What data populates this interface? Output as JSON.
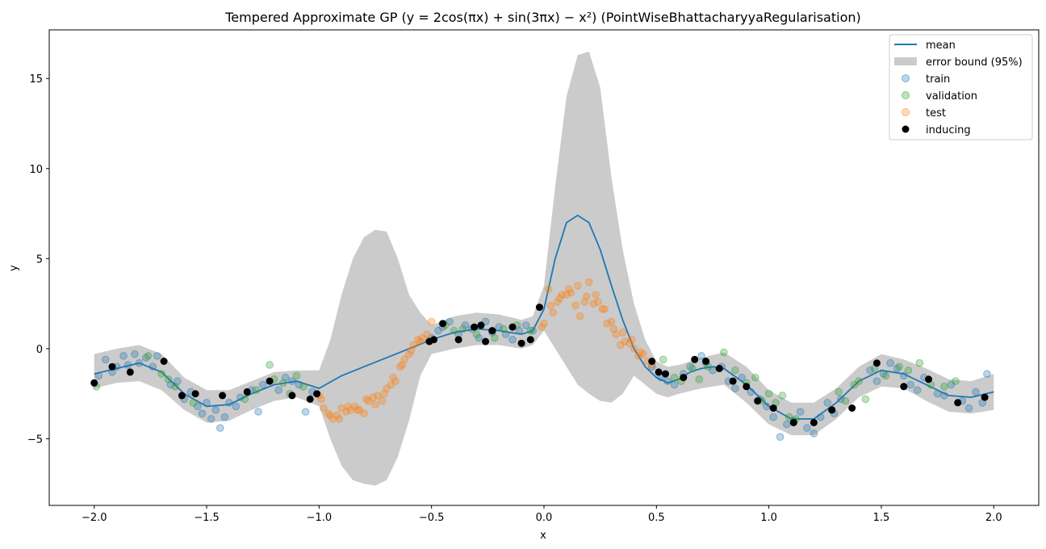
{
  "chart_data": {
    "type": "line",
    "title": "Tempered Approximate GP (y = 2cos(πx) + sin(3πx) − x²) (PointWiseBhattacharyyaRegularisation)",
    "xlabel": "x",
    "ylabel": "y",
    "xlim": [
      -2.2,
      2.2
    ],
    "ylim": [
      -8.7,
      17.7
    ],
    "xticks": [
      -2.0,
      -1.5,
      -1.0,
      -0.5,
      0.0,
      0.5,
      1.0,
      1.5,
      2.0
    ],
    "xtick_labels": [
      "−2.0",
      "−1.5",
      "−1.0",
      "−0.5",
      "0.0",
      "0.5",
      "1.0",
      "1.5",
      "2.0"
    ],
    "yticks": [
      -5,
      0,
      5,
      10,
      15
    ],
    "ytick_labels": [
      "−5",
      "0",
      "5",
      "10",
      "15"
    ],
    "grid": false,
    "legend_position": "top-right",
    "legend": [
      "mean",
      "error bound (95%)",
      "train",
      "validation",
      "test",
      "inducing"
    ],
    "colors": {
      "mean": "#1f77b4",
      "band": "#cbcbcb",
      "train": "#1f77b4",
      "validation": "#2ca02c",
      "test": "#ff7f0e",
      "inducing": "#000000"
    },
    "mean": {
      "x": [
        -2.0,
        -1.9,
        -1.8,
        -1.7,
        -1.6,
        -1.5,
        -1.4,
        -1.3,
        -1.2,
        -1.1,
        -1.0,
        -0.9,
        -0.8,
        -0.7,
        -0.6,
        -0.5,
        -0.4,
        -0.3,
        -0.2,
        -0.1,
        -0.05,
        0.0,
        0.05,
        0.1,
        0.15,
        0.2,
        0.25,
        0.3,
        0.35,
        0.4,
        0.45,
        0.5,
        0.55,
        0.6,
        0.65,
        0.7,
        0.75,
        0.8,
        0.9,
        1.0,
        1.1,
        1.2,
        1.3,
        1.4,
        1.5,
        1.6,
        1.7,
        1.8,
        1.9,
        2.0
      ],
      "y": [
        -1.4,
        -1.1,
        -0.8,
        -1.3,
        -2.5,
        -3.2,
        -3.1,
        -2.5,
        -2.0,
        -1.8,
        -2.2,
        -1.5,
        -1.0,
        -0.5,
        0.0,
        0.5,
        0.9,
        1.1,
        1.0,
        0.8,
        1.0,
        2.2,
        5.0,
        7.0,
        7.4,
        7.0,
        5.5,
        3.5,
        1.6,
        0.0,
        -1.0,
        -1.6,
        -1.9,
        -1.7,
        -1.3,
        -1.1,
        -1.0,
        -1.1,
        -2.0,
        -3.2,
        -3.9,
        -3.9,
        -3.0,
        -1.8,
        -1.2,
        -1.4,
        -2.0,
        -2.6,
        -2.7,
        -2.4
      ]
    },
    "band": {
      "x": [
        -2.0,
        -1.9,
        -1.8,
        -1.7,
        -1.6,
        -1.5,
        -1.4,
        -1.3,
        -1.2,
        -1.1,
        -1.0,
        -0.95,
        -0.9,
        -0.85,
        -0.8,
        -0.75,
        -0.7,
        -0.65,
        -0.6,
        -0.55,
        -0.5,
        -0.4,
        -0.3,
        -0.2,
        -0.1,
        -0.05,
        0.0,
        0.05,
        0.1,
        0.15,
        0.2,
        0.25,
        0.3,
        0.35,
        0.4,
        0.45,
        0.5,
        0.55,
        0.6,
        0.7,
        0.8,
        0.9,
        1.0,
        1.1,
        1.2,
        1.3,
        1.4,
        1.5,
        1.6,
        1.7,
        1.8,
        1.9,
        2.0
      ],
      "upper": [
        -0.3,
        0.0,
        0.2,
        -0.3,
        -1.6,
        -2.3,
        -2.3,
        -1.8,
        -1.3,
        -1.2,
        -1.2,
        0.5,
        3.0,
        5.0,
        6.2,
        6.6,
        6.5,
        5.0,
        3.0,
        2.0,
        1.3,
        1.8,
        2.0,
        1.9,
        1.6,
        1.8,
        3.5,
        9.0,
        14.0,
        16.3,
        16.5,
        14.5,
        9.5,
        5.5,
        2.5,
        0.5,
        -0.7,
        -1.0,
        -0.9,
        -0.5,
        -0.2,
        -1.0,
        -2.3,
        -3.0,
        -3.0,
        -2.2,
        -1.0,
        -0.3,
        -0.6,
        -1.1,
        -1.7,
        -1.8,
        -1.4
      ],
      "lower": [
        -2.2,
        -1.9,
        -1.8,
        -2.3,
        -3.4,
        -4.1,
        -4.0,
        -3.4,
        -2.9,
        -2.7,
        -3.2,
        -5.0,
        -6.5,
        -7.3,
        -7.5,
        -7.6,
        -7.3,
        -6.0,
        -4.0,
        -1.5,
        -0.3,
        0.0,
        0.2,
        0.2,
        0.0,
        0.2,
        1.0,
        0.0,
        -1.0,
        -2.0,
        -2.5,
        -2.9,
        -3.0,
        -2.5,
        -1.5,
        -2.0,
        -2.5,
        -2.7,
        -2.5,
        -2.2,
        -2.0,
        -3.0,
        -4.2,
        -4.8,
        -4.8,
        -3.9,
        -2.7,
        -2.1,
        -2.2,
        -2.9,
        -3.5,
        -3.6,
        -3.4
      ]
    },
    "train": {
      "x": [
        -1.98,
        -1.95,
        -1.92,
        -1.9,
        -1.87,
        -1.85,
        -1.82,
        -1.8,
        -1.77,
        -1.74,
        -1.72,
        -1.66,
        -1.63,
        -1.6,
        -1.57,
        -1.54,
        -1.52,
        -1.5,
        -1.48,
        -1.46,
        -1.44,
        -1.42,
        -1.4,
        -1.37,
        -1.35,
        -1.3,
        -1.27,
        -1.25,
        -1.18,
        -1.15,
        -1.12,
        -1.09,
        -1.06,
        -1.03,
        -0.5,
        -0.47,
        -0.45,
        -0.42,
        -0.38,
        -0.35,
        -0.32,
        -0.29,
        -0.26,
        -0.23,
        -0.2,
        -0.17,
        -0.14,
        -0.11,
        -0.08,
        -0.05,
        0.48,
        0.52,
        0.55,
        0.58,
        0.62,
        0.65,
        0.7,
        0.72,
        0.75,
        0.79,
        0.82,
        0.85,
        0.88,
        0.92,
        0.96,
        0.99,
        1.02,
        1.05,
        1.08,
        1.11,
        1.14,
        1.17,
        1.2,
        1.23,
        1.26,
        1.29,
        1.32,
        1.45,
        1.48,
        1.51,
        1.54,
        1.57,
        1.6,
        1.63,
        1.66,
        1.69,
        1.75,
        1.78,
        1.81,
        1.86,
        1.89,
        1.92,
        1.95,
        1.97
      ],
      "y": [
        -1.5,
        -0.6,
        -1.3,
        -1.0,
        -0.4,
        -0.9,
        -0.3,
        -0.8,
        -0.5,
        -1.0,
        -0.4,
        -2.0,
        -1.8,
        -2.8,
        -2.4,
        -3.2,
        -3.6,
        -3.0,
        -3.9,
        -3.4,
        -4.4,
        -3.8,
        -3.0,
        -3.2,
        -2.7,
        -2.3,
        -3.5,
        -2.0,
        -2.3,
        -1.6,
        -1.8,
        -2.0,
        -3.5,
        -2.4,
        0.6,
        1.0,
        1.2,
        1.5,
        0.8,
        1.3,
        1.1,
        0.6,
        1.5,
        0.9,
        1.2,
        0.8,
        0.5,
        1.0,
        1.3,
        1.0,
        -1.0,
        -1.6,
        -1.8,
        -2.0,
        -1.4,
        -1.0,
        -0.4,
        -0.8,
        -1.2,
        -1.0,
        -1.8,
        -2.2,
        -1.6,
        -2.4,
        -2.8,
        -3.2,
        -3.8,
        -4.9,
        -4.2,
        -4.0,
        -3.5,
        -4.4,
        -4.7,
        -3.8,
        -3.0,
        -3.6,
        -2.8,
        -1.2,
        -1.8,
        -1.4,
        -0.8,
        -1.1,
        -1.5,
        -2.0,
        -2.3,
        -1.6,
        -2.5,
        -2.6,
        -2.0,
        -2.9,
        -3.3,
        -2.4,
        -3.0,
        -1.4
      ]
    },
    "validation": {
      "x": [
        -1.99,
        -1.76,
        -1.7,
        -1.67,
        -1.64,
        -1.56,
        -1.33,
        -1.28,
        -1.22,
        -1.2,
        -1.16,
        -1.13,
        -1.1,
        -1.07,
        -0.44,
        -0.4,
        -0.36,
        -0.3,
        -0.22,
        -0.18,
        -0.12,
        -0.06,
        0.53,
        0.58,
        0.61,
        0.66,
        0.69,
        0.73,
        0.8,
        0.85,
        0.9,
        0.94,
        0.97,
        1.0,
        1.03,
        1.06,
        1.09,
        1.12,
        1.28,
        1.31,
        1.34,
        1.38,
        1.4,
        1.43,
        1.47,
        1.52,
        1.58,
        1.62,
        1.67,
        1.72,
        1.78,
        1.83
      ],
      "y": [
        -2.1,
        -0.4,
        -1.4,
        -1.7,
        -2.1,
        -3.0,
        -2.8,
        -2.3,
        -0.9,
        -1.7,
        -1.9,
        -2.5,
        -1.5,
        -2.1,
        1.3,
        1.0,
        1.1,
        0.8,
        0.6,
        1.1,
        1.3,
        1.0,
        -0.6,
        -1.6,
        -1.8,
        -1.1,
        -1.7,
        -1.0,
        -0.2,
        -1.2,
        -1.9,
        -1.6,
        -2.9,
        -2.5,
        -3.0,
        -2.6,
        -3.8,
        -3.9,
        -3.4,
        -2.4,
        -2.9,
        -2.0,
        -1.8,
        -2.8,
        -1.1,
        -1.5,
        -1.0,
        -1.2,
        -0.8,
        -2.0,
        -2.1,
        -1.8
      ]
    },
    "test": {
      "x": [
        -1.0,
        -0.98,
        -0.96,
        -0.94,
        -0.92,
        -0.9,
        -0.88,
        -0.86,
        -0.84,
        -0.82,
        -0.8,
        -0.78,
        -0.76,
        -0.74,
        -0.72,
        -0.7,
        -0.68,
        -0.66,
        -0.64,
        -0.62,
        -0.6,
        -0.58,
        -0.56,
        -0.54,
        -0.52,
        -0.5,
        0.0,
        0.02,
        0.04,
        0.06,
        0.08,
        0.1,
        0.12,
        0.14,
        0.16,
        0.18,
        0.2,
        0.22,
        0.24,
        0.26,
        0.28,
        0.3,
        0.32,
        0.34,
        0.36,
        0.38,
        0.4,
        0.42,
        0.44,
        0.46,
        0.48,
        -0.01,
        0.03,
        0.07,
        0.11,
        0.15,
        0.19,
        0.23,
        0.27,
        0.31,
        0.35,
        0.39,
        0.43,
        -0.99,
        -0.95,
        -0.91,
        -0.87,
        -0.83,
        -0.79,
        -0.75,
        -0.71,
        -0.67,
        -0.63,
        -0.59,
        -0.55
      ],
      "y": [
        -2.6,
        -3.3,
        -3.6,
        -3.9,
        -3.7,
        -3.3,
        -3.5,
        -3.4,
        -3.2,
        -3.4,
        -3.6,
        -2.9,
        -2.7,
        -2.6,
        -2.9,
        -2.2,
        -2.0,
        -1.8,
        -1.0,
        -0.6,
        -0.3,
        0.2,
        0.5,
        0.6,
        0.8,
        1.5,
        1.4,
        3.3,
        2.0,
        2.6,
        3.0,
        3.0,
        3.1,
        2.4,
        1.8,
        2.6,
        3.7,
        2.5,
        2.6,
        2.2,
        1.4,
        1.5,
        0.8,
        0.2,
        0.4,
        0.3,
        0.0,
        -0.4,
        -0.3,
        -0.7,
        -0.9,
        1.2,
        2.4,
        2.8,
        3.3,
        3.5,
        2.9,
        3.0,
        2.2,
        1.1,
        0.9,
        0.5,
        -0.2,
        -2.8,
        -3.7,
        -3.9,
        -3.2,
        -3.4,
        -2.8,
        -3.1,
        -2.5,
        -1.6,
        -0.9,
        -0.1,
        0.4
      ]
    },
    "inducing": {
      "x": [
        -2.0,
        -1.92,
        -1.84,
        -1.69,
        -1.61,
        -1.55,
        -1.43,
        -1.32,
        -1.22,
        -1.12,
        -1.04,
        -1.01,
        -0.51,
        -0.49,
        -0.45,
        -0.38,
        -0.31,
        -0.28,
        -0.26,
        -0.23,
        -0.23,
        -0.14,
        -0.1,
        -0.06,
        -0.02,
        0.48,
        0.51,
        0.54,
        0.62,
        0.67,
        0.72,
        0.78,
        0.84,
        0.9,
        0.95,
        1.02,
        1.11,
        1.2,
        1.28,
        1.37,
        1.48,
        1.6,
        1.71,
        1.84,
        1.96
      ],
      "y": [
        -1.9,
        -1.0,
        -1.3,
        -0.7,
        -2.6,
        -2.5,
        -2.6,
        -2.4,
        -1.8,
        -2.6,
        -2.8,
        -2.5,
        0.4,
        0.5,
        1.4,
        0.5,
        1.2,
        1.3,
        0.4,
        1.0,
        1.0,
        1.2,
        0.3,
        0.5,
        2.3,
        -0.7,
        -1.3,
        -1.4,
        -1.6,
        -0.6,
        -0.7,
        -1.1,
        -1.8,
        -2.1,
        -2.9,
        -3.3,
        -4.1,
        -4.1,
        -3.4,
        -3.3,
        -0.8,
        -2.1,
        -1.7,
        -3.0,
        -2.7
      ]
    }
  }
}
